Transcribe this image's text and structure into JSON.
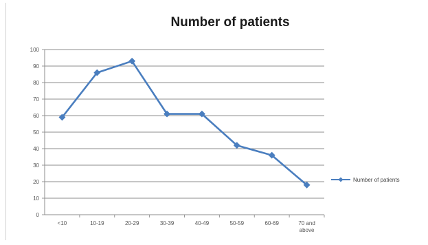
{
  "chart_data": {
    "type": "line",
    "title": "Number of patients",
    "categories": [
      "<10",
      "10-19",
      "20-29",
      "30-39",
      "40-49",
      "50-59",
      "60-69",
      "70 and above"
    ],
    "series": [
      {
        "name": "Number of patients",
        "values": [
          59,
          86,
          93,
          61,
          61,
          42,
          36,
          18
        ]
      }
    ],
    "ylim": [
      0,
      100
    ],
    "yticks": [
      0,
      10,
      20,
      30,
      40,
      50,
      60,
      70,
      80,
      90,
      100
    ],
    "grid": true,
    "legend": "right",
    "line_color": "#4a7ebf"
  }
}
